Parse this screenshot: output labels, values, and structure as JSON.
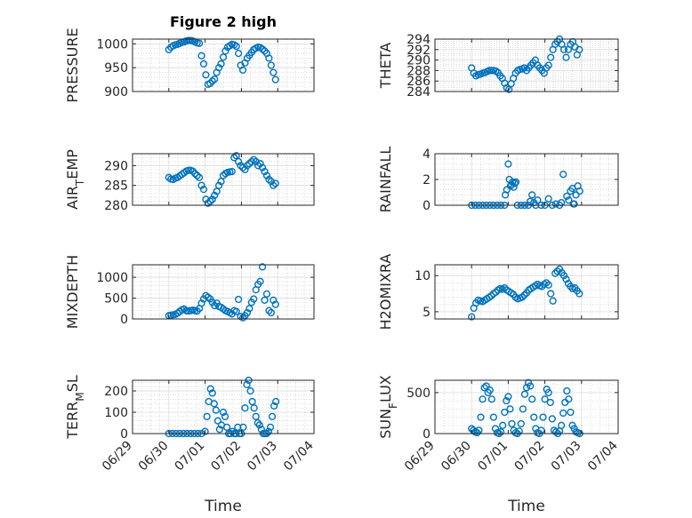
{
  "figure": {
    "title": "Figure 2 high",
    "marker_color": "#0072BD",
    "axes_color": "#262626",
    "grid_color": "#c8c8c8"
  },
  "chart_data": [
    {
      "type": "scatter",
      "ylabel": "PRESSURE",
      "xlabel": "",
      "grid": true,
      "xlim": [
        "06/29",
        "07/04"
      ],
      "ylim": [
        900,
        1010
      ],
      "yticks": [
        900,
        950,
        1000
      ],
      "x_tick_labels": [],
      "x": [
        0.0,
        0.06,
        0.12,
        0.18,
        0.24,
        0.3,
        0.36,
        0.42,
        0.48,
        0.54,
        0.6,
        0.66,
        0.72,
        0.78,
        0.84,
        0.9,
        0.96,
        1.02,
        1.08,
        1.14,
        1.2,
        1.26,
        1.32,
        1.38,
        1.44,
        1.5,
        1.56,
        1.62,
        1.68,
        1.74,
        1.8,
        1.86,
        1.92,
        1.98,
        2.04,
        2.1,
        2.16,
        2.22,
        2.28,
        2.34,
        2.4,
        2.46,
        2.52,
        2.58,
        2.64,
        2.7,
        2.76,
        2.82,
        2.88,
        2.94
      ],
      "y": [
        988,
        993,
        996,
        998,
        999,
        1001,
        1003,
        1004,
        1006,
        1007,
        1007,
        1006,
        1004,
        1002,
        1001,
        975,
        958,
        935,
        915,
        917,
        922,
        926,
        940,
        950,
        958,
        972,
        985,
        993,
        996,
        999,
        998,
        995,
        980,
        955,
        945,
        960,
        970,
        976,
        982,
        988,
        991,
        993,
        992,
        989,
        985,
        980,
        970,
        955,
        940,
        925
      ]
    },
    {
      "type": "scatter",
      "ylabel": "THETA",
      "xlabel": "",
      "grid": true,
      "xlim": [
        "06/29",
        "07/04"
      ],
      "ylim": [
        284,
        294
      ],
      "yticks": [
        284,
        286,
        288,
        290,
        292,
        294
      ],
      "x_tick_labels": [],
      "x": [
        0.0,
        0.06,
        0.12,
        0.18,
        0.24,
        0.3,
        0.36,
        0.42,
        0.48,
        0.54,
        0.6,
        0.66,
        0.72,
        0.78,
        0.84,
        0.9,
        0.96,
        1.02,
        1.08,
        1.14,
        1.2,
        1.26,
        1.32,
        1.38,
        1.44,
        1.5,
        1.56,
        1.62,
        1.68,
        1.74,
        1.8,
        1.86,
        1.92,
        1.98,
        2.04,
        2.1,
        2.16,
        2.22,
        2.28,
        2.34,
        2.4,
        2.46,
        2.52,
        2.58,
        2.64,
        2.7,
        2.76,
        2.82,
        2.88,
        2.94
      ],
      "y": [
        288.5,
        287.5,
        287.0,
        287.2,
        287.3,
        287.5,
        287.6,
        287.8,
        288.0,
        288.0,
        288.0,
        287.9,
        287.6,
        287.0,
        286.5,
        285.6,
        284.7,
        284.4,
        285.5,
        286.5,
        287.5,
        288.0,
        288.2,
        288.3,
        288.5,
        288.0,
        288.5,
        289.0,
        289.5,
        290.0,
        289.0,
        288.5,
        288.0,
        287.5,
        288.5,
        289.0,
        290.5,
        292.0,
        293.0,
        293.5,
        294.0,
        293.0,
        292.0,
        290.5,
        292.0,
        293.0,
        293.5,
        292.5,
        291.0,
        292.0
      ]
    },
    {
      "type": "scatter",
      "ylabel": "AIR_TEMP",
      "xlabel": "",
      "grid": true,
      "xlim": [
        "06/29",
        "07/04"
      ],
      "ylim": [
        280,
        293
      ],
      "yticks": [
        280,
        285,
        290
      ],
      "x_tick_labels": [],
      "x": [
        0.0,
        0.06,
        0.12,
        0.18,
        0.24,
        0.3,
        0.36,
        0.42,
        0.48,
        0.54,
        0.6,
        0.66,
        0.72,
        0.78,
        0.84,
        0.9,
        0.96,
        1.02,
        1.08,
        1.14,
        1.2,
        1.26,
        1.32,
        1.38,
        1.44,
        1.5,
        1.56,
        1.62,
        1.68,
        1.74,
        1.8,
        1.86,
        1.92,
        1.98,
        2.04,
        2.1,
        2.16,
        2.22,
        2.28,
        2.34,
        2.4,
        2.46,
        2.52,
        2.58,
        2.64,
        2.7,
        2.76,
        2.82,
        2.88,
        2.94
      ],
      "y": [
        287.0,
        286.6,
        286.5,
        286.8,
        287.0,
        287.4,
        287.8,
        288.2,
        288.6,
        288.8,
        288.8,
        288.6,
        288.0,
        287.5,
        287.0,
        285.0,
        284.0,
        281.5,
        280.5,
        281.0,
        281.5,
        282.5,
        283.5,
        285.0,
        286.0,
        287.5,
        288.0,
        288.3,
        288.4,
        288.5,
        292.0,
        292.5,
        291.0,
        290.0,
        289.5,
        289.0,
        290.0,
        290.5,
        291.0,
        291.5,
        291.0,
        290.0,
        290.5,
        289.5,
        288.5,
        287.5,
        286.5,
        286.0,
        285.0,
        285.5
      ]
    },
    {
      "type": "scatter",
      "ylabel": "RAINFALL",
      "xlabel": "",
      "grid": true,
      "xlim": [
        "06/29",
        "07/04"
      ],
      "ylim": [
        0,
        4
      ],
      "yticks": [
        0,
        2,
        4
      ],
      "x_tick_labels": [],
      "x": [
        0.0,
        0.1,
        0.2,
        0.3,
        0.4,
        0.5,
        0.6,
        0.7,
        0.8,
        0.9,
        0.92,
        0.96,
        1.0,
        1.03,
        1.06,
        1.09,
        1.12,
        1.15,
        1.18,
        1.21,
        1.25,
        1.35,
        1.45,
        1.55,
        1.6,
        1.65,
        1.7,
        1.75,
        1.8,
        1.9,
        2.0,
        2.1,
        2.2,
        2.3,
        2.4,
        2.45,
        2.5,
        2.6,
        2.65,
        2.7,
        2.75,
        2.78,
        2.8,
        2.85,
        2.9,
        2.95
      ],
      "y": [
        0,
        0,
        0,
        0,
        0,
        0,
        0,
        0,
        0,
        0,
        0.8,
        1.2,
        3.2,
        2.0,
        1.5,
        1.6,
        1.8,
        1.4,
        1.7,
        1.8,
        0,
        0,
        0,
        0,
        0.3,
        0.8,
        0.2,
        0,
        0.4,
        0,
        0,
        0.5,
        0,
        0.1,
        0,
        0.2,
        2.4,
        0.7,
        0.4,
        1.1,
        1.3,
        0.1,
        0.1,
        0.8,
        1.5,
        1.1
      ]
    },
    {
      "type": "scatter",
      "ylabel": "MIXDEPTH",
      "xlabel": "",
      "grid": true,
      "xlim": [
        "06/29",
        "07/04"
      ],
      "ylim": [
        0,
        1300
      ],
      "yticks": [
        0,
        500,
        1000
      ],
      "x_tick_labels": [],
      "x": [
        0.0,
        0.06,
        0.12,
        0.18,
        0.24,
        0.3,
        0.36,
        0.42,
        0.48,
        0.54,
        0.6,
        0.66,
        0.72,
        0.78,
        0.84,
        0.9,
        0.96,
        1.02,
        1.08,
        1.14,
        1.2,
        1.26,
        1.32,
        1.38,
        1.44,
        1.5,
        1.56,
        1.62,
        1.68,
        1.74,
        1.8,
        1.86,
        1.92,
        1.98,
        2.04,
        2.1,
        2.16,
        2.22,
        2.28,
        2.34,
        2.4,
        2.46,
        2.52,
        2.58,
        2.64,
        2.7,
        2.76,
        2.82,
        2.88,
        2.94
      ],
      "y": [
        80,
        90,
        100,
        110,
        140,
        180,
        220,
        240,
        200,
        190,
        200,
        210,
        200,
        190,
        250,
        380,
        480,
        560,
        520,
        480,
        400,
        320,
        380,
        300,
        280,
        240,
        200,
        180,
        150,
        120,
        200,
        180,
        470,
        60,
        30,
        80,
        150,
        250,
        400,
        480,
        700,
        830,
        900,
        1250,
        450,
        600,
        200,
        150,
        450,
        350
      ]
    },
    {
      "type": "scatter",
      "ylabel": "H2OMIXRA",
      "xlabel": "",
      "grid": true,
      "xlim": [
        "06/29",
        "07/04"
      ],
      "ylim": [
        4,
        11.5
      ],
      "yticks": [
        5,
        10
      ],
      "x_tick_labels": [],
      "x": [
        0.0,
        0.06,
        0.12,
        0.18,
        0.24,
        0.3,
        0.36,
        0.42,
        0.48,
        0.54,
        0.6,
        0.66,
        0.72,
        0.78,
        0.84,
        0.9,
        0.96,
        1.02,
        1.08,
        1.14,
        1.2,
        1.26,
        1.32,
        1.38,
        1.44,
        1.5,
        1.56,
        1.62,
        1.68,
        1.74,
        1.8,
        1.86,
        1.92,
        1.98,
        2.04,
        2.1,
        2.16,
        2.22,
        2.28,
        2.34,
        2.4,
        2.46,
        2.52,
        2.58,
        2.64,
        2.7,
        2.76,
        2.82,
        2.88,
        2.94
      ],
      "y": [
        4.3,
        5.5,
        6.2,
        6.6,
        6.5,
        6.4,
        6.6,
        6.8,
        7.0,
        7.2,
        7.5,
        7.7,
        8.0,
        8.2,
        8.1,
        8.3,
        8.0,
        7.8,
        7.6,
        7.4,
        7.0,
        6.8,
        6.9,
        7.0,
        7.3,
        7.6,
        8.0,
        8.2,
        8.4,
        8.6,
        8.8,
        8.6,
        8.5,
        8.8,
        9.0,
        8.7,
        7.5,
        6.5,
        10.3,
        10.6,
        10.9,
        10.4,
        10.0,
        9.5,
        8.9,
        8.5,
        8.2,
        8.3,
        7.9,
        7.5
      ]
    },
    {
      "type": "scatter",
      "ylabel": "TERR_MSL",
      "xlabel": "Time",
      "grid": true,
      "xlim": [
        "06/29",
        "07/04"
      ],
      "ylim": [
        0,
        250
      ],
      "yticks": [
        0,
        100,
        200
      ],
      "x_tick_labels": [
        "06/29",
        "06/30",
        "07/01",
        "07/02",
        "07/03",
        "07/04"
      ],
      "x": [
        0.0,
        0.1,
        0.2,
        0.3,
        0.4,
        0.5,
        0.6,
        0.7,
        0.8,
        0.9,
        1.0,
        1.05,
        1.1,
        1.15,
        1.2,
        1.25,
        1.3,
        1.35,
        1.4,
        1.45,
        1.5,
        1.55,
        1.6,
        1.65,
        1.7,
        1.75,
        1.8,
        1.85,
        1.9,
        1.95,
        2.0,
        2.05,
        2.1,
        2.15,
        2.2,
        2.25,
        2.3,
        2.35,
        2.4,
        2.45,
        2.5,
        2.55,
        2.6,
        2.65,
        2.7,
        2.75,
        2.8,
        2.85,
        2.9,
        2.95
      ],
      "y": [
        0,
        0,
        0,
        0,
        0,
        0,
        0,
        0,
        0,
        0,
        10,
        80,
        150,
        210,
        190,
        140,
        110,
        60,
        20,
        40,
        100,
        80,
        30,
        0,
        0,
        10,
        0,
        0,
        30,
        0,
        0,
        30,
        120,
        230,
        250,
        200,
        150,
        120,
        80,
        50,
        40,
        20,
        0,
        0,
        0,
        10,
        30,
        80,
        130,
        150
      ]
    },
    {
      "type": "scatter",
      "ylabel": "SUN_FLUX",
      "xlabel": "Time",
      "grid": true,
      "xlim": [
        "06/29",
        "07/04"
      ],
      "ylim": [
        0,
        650
      ],
      "yticks": [
        0,
        500
      ],
      "x_tick_labels": [
        "06/29",
        "06/30",
        "07/01",
        "07/02",
        "07/03",
        "07/04"
      ],
      "x": [
        0.0,
        0.05,
        0.1,
        0.15,
        0.2,
        0.25,
        0.3,
        0.35,
        0.4,
        0.45,
        0.5,
        0.55,
        0.6,
        0.65,
        0.7,
        0.75,
        0.8,
        0.85,
        0.9,
        0.95,
        1.0,
        1.05,
        1.1,
        1.15,
        1.2,
        1.25,
        1.3,
        1.35,
        1.4,
        1.45,
        1.5,
        1.55,
        1.6,
        1.65,
        1.7,
        1.75,
        1.8,
        1.85,
        1.9,
        1.95,
        2.0,
        2.05,
        2.1,
        2.15,
        2.2,
        2.25,
        2.3,
        2.35,
        2.4,
        2.45,
        2.5,
        2.55,
        2.6,
        2.65,
        2.7,
        2.75,
        2.8,
        2.85,
        2.9,
        2.95
      ],
      "y": [
        60,
        40,
        20,
        10,
        40,
        200,
        420,
        560,
        580,
        500,
        530,
        420,
        200,
        60,
        10,
        0,
        20,
        100,
        260,
        400,
        450,
        300,
        120,
        40,
        10,
        0,
        30,
        120,
        300,
        480,
        560,
        620,
        580,
        420,
        200,
        60,
        10,
        0,
        40,
        200,
        420,
        540,
        500,
        380,
        180,
        40,
        20,
        0,
        30,
        100,
        250,
        380,
        520,
        420,
        260,
        100,
        60,
        20,
        10,
        0
      ]
    }
  ]
}
